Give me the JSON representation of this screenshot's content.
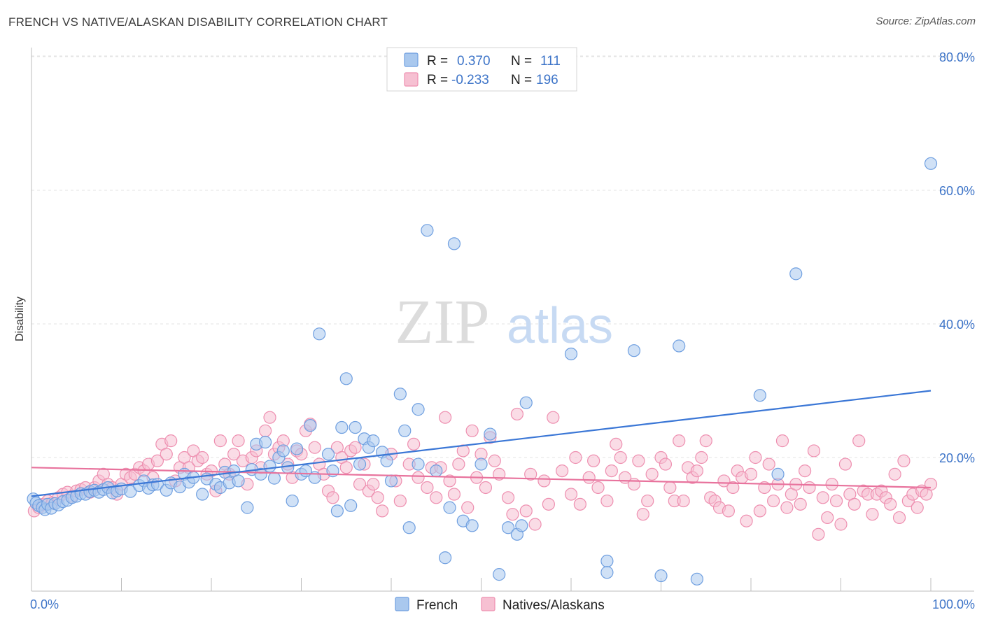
{
  "header": {
    "title": "FRENCH VS NATIVE/ALASKAN DISABILITY CORRELATION CHART",
    "source": "Source: ZipAtlas.com"
  },
  "watermark": {
    "zip": "ZIP",
    "atlas": "atlas"
  },
  "legend_top": {
    "rows": [
      {
        "r_label": "R =",
        "r_value": "0.370",
        "n_label": "N =",
        "n_value": "111"
      },
      {
        "r_label": "R =",
        "r_value": "-0.233",
        "n_label": "N =",
        "n_value": "196"
      }
    ]
  },
  "legend_bottom": {
    "items": [
      "French",
      "Natives/Alaskans"
    ]
  },
  "colors": {
    "french_fill": "#a9c8ee",
    "french_stroke": "#6f9fe0",
    "french_line": "#3b77d6",
    "native_fill": "#f6c0d2",
    "native_stroke": "#ee8fb0",
    "native_line": "#e8739d",
    "tick_text": "#3d74c8"
  },
  "chart_data": {
    "type": "scatter",
    "title": "FRENCH VS NATIVE/ALASKAN DISABILITY CORRELATION CHART",
    "xlabel": "",
    "ylabel": "Disability",
    "xlim": [
      0,
      100
    ],
    "ylim": [
      0,
      85
    ],
    "x_tick_labels": [
      "0.0%",
      "100.0%"
    ],
    "y_ticks": [
      20,
      40,
      60,
      80
    ],
    "y_tick_labels": [
      "20.0%",
      "40.0%",
      "60.0%",
      "80.0%"
    ],
    "grid": true,
    "legend_position": "top-center",
    "series": [
      {
        "name": "French",
        "trend": {
          "x": [
            0,
            100
          ],
          "y": [
            14.2,
            30.0
          ]
        },
        "points": [
          [
            0.2,
            13.8
          ],
          [
            0.5,
            13.2
          ],
          [
            0.8,
            12.8
          ],
          [
            1.2,
            12.5
          ],
          [
            1.5,
            12.2
          ],
          [
            1.8,
            13.0
          ],
          [
            2.2,
            12.4
          ],
          [
            2.6,
            13.1
          ],
          [
            3.0,
            12.9
          ],
          [
            3.5,
            13.4
          ],
          [
            4.0,
            13.6
          ],
          [
            4.5,
            14.0
          ],
          [
            5.0,
            14.2
          ],
          [
            5.5,
            14.6
          ],
          [
            6.0,
            14.5
          ],
          [
            6.5,
            14.9
          ],
          [
            7.0,
            15.1
          ],
          [
            7.5,
            14.8
          ],
          [
            8.0,
            15.2
          ],
          [
            8.5,
            15.5
          ],
          [
            9.0,
            14.7
          ],
          [
            9.5,
            15.0
          ],
          [
            10.0,
            15.3
          ],
          [
            11.0,
            14.9
          ],
          [
            12.0,
            15.8
          ],
          [
            12.5,
            16.5
          ],
          [
            13.0,
            15.4
          ],
          [
            13.5,
            15.9
          ],
          [
            14.0,
            16.0
          ],
          [
            15.0,
            15.1
          ],
          [
            15.5,
            16.2
          ],
          [
            16.5,
            15.6
          ],
          [
            17.0,
            17.5
          ],
          [
            17.5,
            16.3
          ],
          [
            18.0,
            17.0
          ],
          [
            19.0,
            14.5
          ],
          [
            19.5,
            16.8
          ],
          [
            20.5,
            16.0
          ],
          [
            21.0,
            15.5
          ],
          [
            21.5,
            17.8
          ],
          [
            22.0,
            16.2
          ],
          [
            22.5,
            18.0
          ],
          [
            23.0,
            16.5
          ],
          [
            24.0,
            12.5
          ],
          [
            24.5,
            18.2
          ],
          [
            25.0,
            22.0
          ],
          [
            25.5,
            17.5
          ],
          [
            26.0,
            22.3
          ],
          [
            26.5,
            18.7
          ],
          [
            27.0,
            16.9
          ],
          [
            27.5,
            20.0
          ],
          [
            28.0,
            21.0
          ],
          [
            28.5,
            18.5
          ],
          [
            29.0,
            13.5
          ],
          [
            29.5,
            21.3
          ],
          [
            30.0,
            17.5
          ],
          [
            30.5,
            18.0
          ],
          [
            31.0,
            24.8
          ],
          [
            31.5,
            17.0
          ],
          [
            32.0,
            38.5
          ],
          [
            33.0,
            20.5
          ],
          [
            33.5,
            18.0
          ],
          [
            34.0,
            12.0
          ],
          [
            34.5,
            24.5
          ],
          [
            35.0,
            31.8
          ],
          [
            35.5,
            12.8
          ],
          [
            36.0,
            24.5
          ],
          [
            36.5,
            19.0
          ],
          [
            37.0,
            22.8
          ],
          [
            37.5,
            21.5
          ],
          [
            38.0,
            22.5
          ],
          [
            39.0,
            20.8
          ],
          [
            39.5,
            19.5
          ],
          [
            40.0,
            16.5
          ],
          [
            41.0,
            29.5
          ],
          [
            41.5,
            24.0
          ],
          [
            42.0,
            9.5
          ],
          [
            43.0,
            27.2
          ],
          [
            43.0,
            19.0
          ],
          [
            44.0,
            54.0
          ],
          [
            45.0,
            18.0
          ],
          [
            46.0,
            5.0
          ],
          [
            46.5,
            12.5
          ],
          [
            47.0,
            52.0
          ],
          [
            48.0,
            10.5
          ],
          [
            49.0,
            9.8
          ],
          [
            50.0,
            19.0
          ],
          [
            51.0,
            23.5
          ],
          [
            52.0,
            2.5
          ],
          [
            53.0,
            9.5
          ],
          [
            54.0,
            8.5
          ],
          [
            54.5,
            9.8
          ],
          [
            55.0,
            28.2
          ],
          [
            60.0,
            35.5
          ],
          [
            64.0,
            4.5
          ],
          [
            64.0,
            2.8
          ],
          [
            67.0,
            36.0
          ],
          [
            70.0,
            2.3
          ],
          [
            72.0,
            36.7
          ],
          [
            74.0,
            1.8
          ],
          [
            81.0,
            29.3
          ],
          [
            83.0,
            17.5
          ],
          [
            85.0,
            47.5
          ],
          [
            100.0,
            64.0
          ]
        ]
      },
      {
        "name": "Natives/Alaskans",
        "trend": {
          "x": [
            0,
            100
          ],
          "y": [
            18.5,
            15.5
          ]
        },
        "points": [
          [
            0.3,
            12.0
          ],
          [
            0.8,
            12.5
          ],
          [
            1.3,
            13.0
          ],
          [
            1.8,
            13.5
          ],
          [
            2.3,
            13.2
          ],
          [
            3.0,
            14.0
          ],
          [
            3.5,
            14.5
          ],
          [
            4.0,
            14.8
          ],
          [
            4.5,
            14.2
          ],
          [
            5.0,
            15.0
          ],
          [
            5.5,
            15.2
          ],
          [
            6.0,
            15.5
          ],
          [
            6.5,
            14.8
          ],
          [
            7.0,
            15.5
          ],
          [
            7.5,
            16.5
          ],
          [
            8.0,
            17.5
          ],
          [
            8.5,
            16.0
          ],
          [
            9.0,
            15.5
          ],
          [
            9.5,
            14.5
          ],
          [
            10.0,
            16.0
          ],
          [
            10.5,
            17.5
          ],
          [
            11.0,
            17.0
          ],
          [
            11.5,
            17.5
          ],
          [
            12.0,
            18.5
          ],
          [
            12.5,
            18.0
          ],
          [
            13.0,
            19.0
          ],
          [
            13.5,
            17.0
          ],
          [
            14.0,
            19.5
          ],
          [
            14.5,
            22.0
          ],
          [
            15.0,
            20.5
          ],
          [
            15.5,
            22.5
          ],
          [
            16.0,
            16.5
          ],
          [
            16.5,
            18.5
          ],
          [
            17.0,
            20.0
          ],
          [
            17.5,
            18.5
          ],
          [
            18.0,
            21.0
          ],
          [
            18.5,
            19.5
          ],
          [
            19.0,
            20.0
          ],
          [
            19.5,
            17.5
          ],
          [
            20.0,
            18.0
          ],
          [
            20.5,
            15.0
          ],
          [
            21.0,
            22.5
          ],
          [
            21.5,
            19.0
          ],
          [
            22.0,
            17.5
          ],
          [
            22.5,
            20.5
          ],
          [
            23.0,
            22.5
          ],
          [
            23.5,
            19.5
          ],
          [
            24.0,
            16.0
          ],
          [
            24.5,
            20.0
          ],
          [
            25.0,
            21.0
          ],
          [
            25.5,
            18.5
          ],
          [
            26.0,
            24.0
          ],
          [
            26.5,
            26.0
          ],
          [
            27.0,
            20.5
          ],
          [
            27.5,
            21.5
          ],
          [
            28.0,
            22.5
          ],
          [
            28.5,
            19.0
          ],
          [
            29.0,
            17.0
          ],
          [
            29.5,
            21.0
          ],
          [
            30.0,
            20.5
          ],
          [
            30.5,
            24.0
          ],
          [
            31.0,
            25.0
          ],
          [
            31.5,
            21.5
          ],
          [
            32.0,
            19.0
          ],
          [
            32.5,
            17.5
          ],
          [
            33.0,
            15.0
          ],
          [
            33.5,
            14.0
          ],
          [
            34.0,
            21.5
          ],
          [
            34.5,
            20.0
          ],
          [
            35.0,
            18.5
          ],
          [
            35.5,
            21.0
          ],
          [
            36.0,
            21.5
          ],
          [
            36.5,
            16.0
          ],
          [
            37.0,
            19.0
          ],
          [
            37.5,
            15.0
          ],
          [
            38.0,
            16.0
          ],
          [
            38.5,
            14.0
          ],
          [
            39.0,
            12.0
          ],
          [
            40.0,
            20.5
          ],
          [
            40.5,
            16.5
          ],
          [
            41.0,
            13.5
          ],
          [
            42.0,
            19.0
          ],
          [
            42.5,
            22.0
          ],
          [
            43.0,
            17.0
          ],
          [
            44.0,
            15.5
          ],
          [
            44.5,
            18.5
          ],
          [
            45.0,
            14.0
          ],
          [
            45.5,
            18.5
          ],
          [
            46.0,
            26.0
          ],
          [
            46.5,
            16.5
          ],
          [
            47.0,
            14.5
          ],
          [
            47.5,
            19.0
          ],
          [
            48.0,
            21.0
          ],
          [
            48.5,
            12.5
          ],
          [
            49.0,
            24.0
          ],
          [
            49.5,
            17.0
          ],
          [
            50.0,
            20.5
          ],
          [
            50.5,
            15.5
          ],
          [
            51.0,
            23.0
          ],
          [
            51.5,
            19.5
          ],
          [
            52.0,
            17.5
          ],
          [
            53.0,
            14.0
          ],
          [
            53.5,
            11.5
          ],
          [
            54.0,
            26.5
          ],
          [
            55.0,
            12.0
          ],
          [
            55.5,
            17.5
          ],
          [
            56.0,
            10.0
          ],
          [
            57.0,
            16.5
          ],
          [
            57.5,
            13.0
          ],
          [
            58.0,
            26.0
          ],
          [
            59.0,
            18.0
          ],
          [
            60.0,
            14.5
          ],
          [
            60.5,
            20.0
          ],
          [
            61.0,
            13.0
          ],
          [
            62.0,
            17.0
          ],
          [
            62.5,
            19.5
          ],
          [
            63.0,
            15.5
          ],
          [
            64.0,
            13.5
          ],
          [
            64.5,
            18.0
          ],
          [
            65.0,
            22.0
          ],
          [
            65.5,
            20.0
          ],
          [
            66.0,
            17.0
          ],
          [
            67.0,
            16.0
          ],
          [
            67.5,
            19.5
          ],
          [
            68.0,
            11.5
          ],
          [
            68.5,
            13.5
          ],
          [
            69.0,
            17.5
          ],
          [
            70.0,
            20.0
          ],
          [
            70.5,
            19.0
          ],
          [
            71.0,
            15.5
          ],
          [
            71.5,
            13.5
          ],
          [
            72.0,
            22.5
          ],
          [
            72.5,
            13.5
          ],
          [
            73.0,
            18.5
          ],
          [
            73.5,
            17.0
          ],
          [
            74.0,
            18.0
          ],
          [
            74.5,
            20.0
          ],
          [
            75.0,
            22.5
          ],
          [
            75.5,
            14.0
          ],
          [
            76.0,
            13.5
          ],
          [
            76.5,
            12.5
          ],
          [
            77.0,
            16.5
          ],
          [
            77.5,
            12.0
          ],
          [
            78.0,
            15.5
          ],
          [
            78.5,
            18.0
          ],
          [
            79.0,
            17.0
          ],
          [
            79.5,
            10.5
          ],
          [
            80.0,
            17.5
          ],
          [
            80.5,
            20.0
          ],
          [
            81.0,
            12.0
          ],
          [
            81.5,
            15.5
          ],
          [
            82.0,
            19.0
          ],
          [
            82.5,
            13.5
          ],
          [
            83.0,
            16.0
          ],
          [
            83.5,
            22.5
          ],
          [
            84.0,
            12.5
          ],
          [
            84.5,
            14.5
          ],
          [
            85.0,
            16.0
          ],
          [
            85.5,
            13.0
          ],
          [
            86.0,
            18.0
          ],
          [
            86.5,
            15.5
          ],
          [
            87.0,
            21.0
          ],
          [
            87.5,
            8.5
          ],
          [
            88.0,
            14.0
          ],
          [
            88.5,
            11.0
          ],
          [
            89.0,
            16.0
          ],
          [
            89.5,
            13.5
          ],
          [
            90.0,
            10.0
          ],
          [
            90.5,
            19.0
          ],
          [
            91.0,
            14.5
          ],
          [
            91.5,
            13.0
          ],
          [
            92.0,
            22.5
          ],
          [
            92.5,
            15.0
          ],
          [
            93.0,
            14.5
          ],
          [
            93.5,
            11.5
          ],
          [
            94.0,
            14.5
          ],
          [
            94.5,
            15.0
          ],
          [
            95.0,
            14.0
          ],
          [
            95.5,
            13.0
          ],
          [
            96.0,
            17.5
          ],
          [
            96.5,
            11.0
          ],
          [
            97.0,
            19.5
          ],
          [
            97.5,
            13.5
          ],
          [
            98.0,
            14.5
          ],
          [
            98.5,
            12.5
          ],
          [
            99.0,
            15.0
          ],
          [
            99.5,
            14.5
          ],
          [
            100.0,
            16.0
          ]
        ]
      }
    ]
  }
}
